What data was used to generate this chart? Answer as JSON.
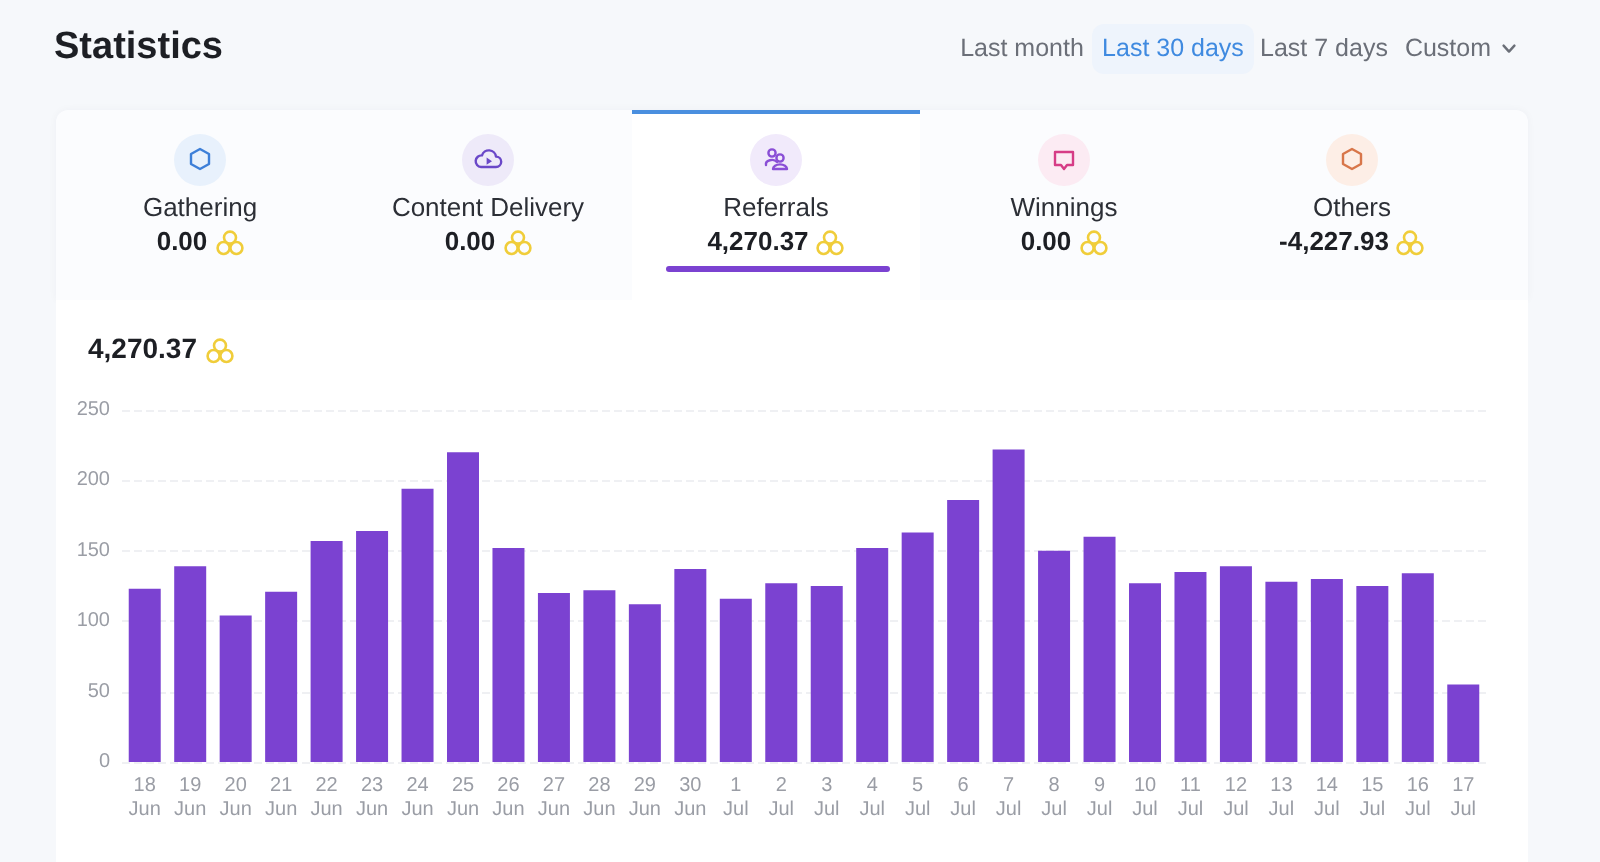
{
  "chart_data": [
    {
      "type": "other",
      "title": "Statistics",
      "annotations": [
        "Last month",
        "Last 30 days",
        "Last 7 days",
        "Custom"
      ],
      "categories": [
        "Gathering",
        "Content Delivery",
        "Referrals",
        "Winnings",
        "Others"
      ],
      "value_labels": [
        "0.00",
        "0.00",
        "4,270.37",
        "0.00",
        "-4,227.93"
      ]
    },
    {
      "type": "bar",
      "title": "4,270.37",
      "categories": [
        "18\nJun",
        "19\nJun",
        "20\nJun",
        "21\nJun",
        "22\nJun",
        "23\nJun",
        "24\nJun",
        "25\nJun",
        "26\nJun",
        "27\nJun",
        "28\nJun",
        "29\nJun",
        "30\nJun",
        "1\nJul",
        "2\nJul",
        "3\nJul",
        "4\nJul",
        "5\nJul",
        "6\nJul",
        "7\nJul",
        "8\nJul",
        "9\nJul",
        "10\nJul",
        "11\nJul",
        "12\nJul",
        "13\nJul",
        "14\nJul",
        "15\nJul",
        "16\nJul",
        "17\nJul"
      ],
      "values": [
        123,
        139,
        104,
        121,
        157,
        164,
        194,
        220,
        152,
        120,
        122,
        112,
        137,
        116,
        127,
        125,
        152,
        163,
        186,
        222,
        150,
        160,
        127,
        135,
        139,
        128,
        130,
        125,
        134,
        55
      ],
      "color": "#7b42d1",
      "ylim": [
        0,
        250
      ],
      "yticks": [
        0,
        50,
        100,
        150,
        200,
        250
      ],
      "grid": "y"
    }
  ]
}
